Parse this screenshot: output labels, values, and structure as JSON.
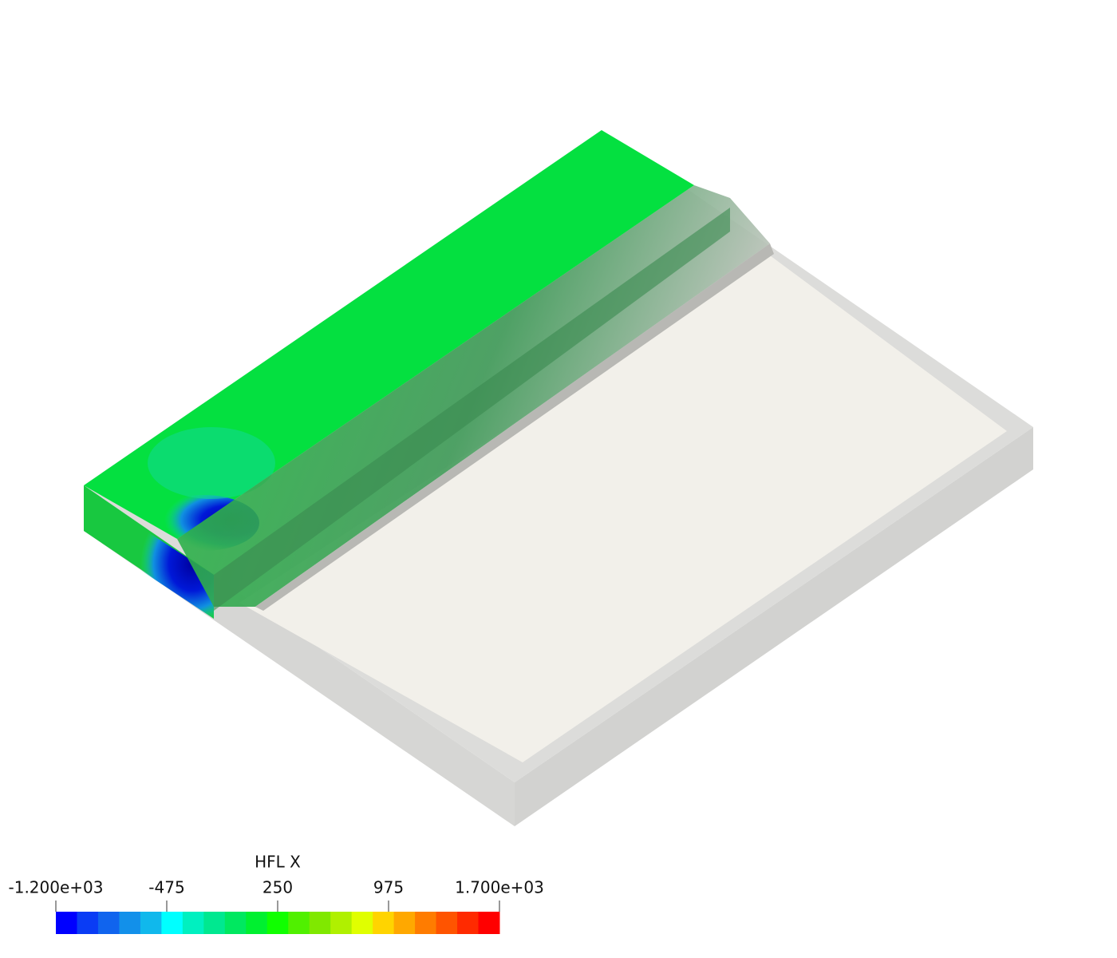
{
  "colorbar": {
    "title": "HFL X",
    "range": [
      -1200,
      1700
    ],
    "ticks": [
      {
        "value": -1200,
        "label": "-1.200e+03"
      },
      -475,
      250,
      975,
      {
        "value": 1700,
        "label": "1.700e+03"
      }
    ],
    "colors": [
      "#0000ff",
      "#0a3cf5",
      "#1064ee",
      "#1290ea",
      "#10b8ec",
      "#00ffff",
      "#00f0c0",
      "#00e890",
      "#00e860",
      "#00f030",
      "#10ff00",
      "#50f000",
      "#80e800",
      "#b0f000",
      "#e0ff00",
      "#ffd400",
      "#ffa800",
      "#ff7c00",
      "#ff5400",
      "#ff2a00",
      "#ff0000"
    ]
  }
}
